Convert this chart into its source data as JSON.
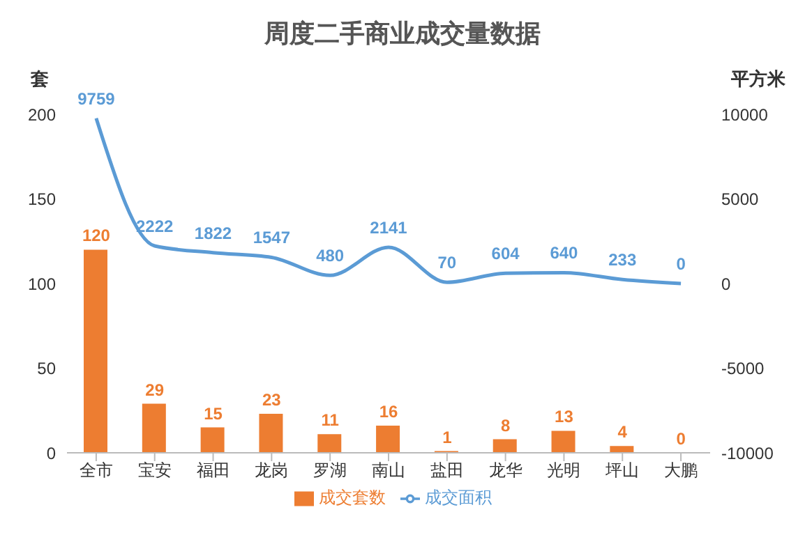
{
  "chart_data": {
    "type": "bar",
    "title": "周度二手商业成交量数据",
    "ylabel": "套",
    "y2label": "平方米",
    "categories": [
      "全市",
      "宝安",
      "福田",
      "龙岗",
      "罗湖",
      "南山",
      "盐田",
      "龙华",
      "光明",
      "坪山",
      "大鹏"
    ],
    "series": [
      {
        "name": "成交套数",
        "color": "#ed7d31",
        "values": [
          120,
          29,
          15,
          23,
          11,
          16,
          1,
          8,
          13,
          4,
          0
        ]
      },
      {
        "name": "成交面积",
        "type": "line",
        "axis": "y2",
        "color": "#5b9bd5",
        "marker": "none",
        "values": [
          9759,
          2222,
          1822,
          1547,
          480,
          2141,
          70,
          604,
          640,
          233,
          0
        ]
      }
    ],
    "ylim": [
      0,
      200
    ],
    "yticks": [
      0,
      50,
      100,
      150,
      200
    ],
    "y2lim": [
      -10000,
      10000
    ],
    "y2ticks": [
      -10000,
      -5000,
      0,
      5000,
      10000
    ],
    "data_labels": true,
    "grid": false,
    "legend": "bottom"
  }
}
